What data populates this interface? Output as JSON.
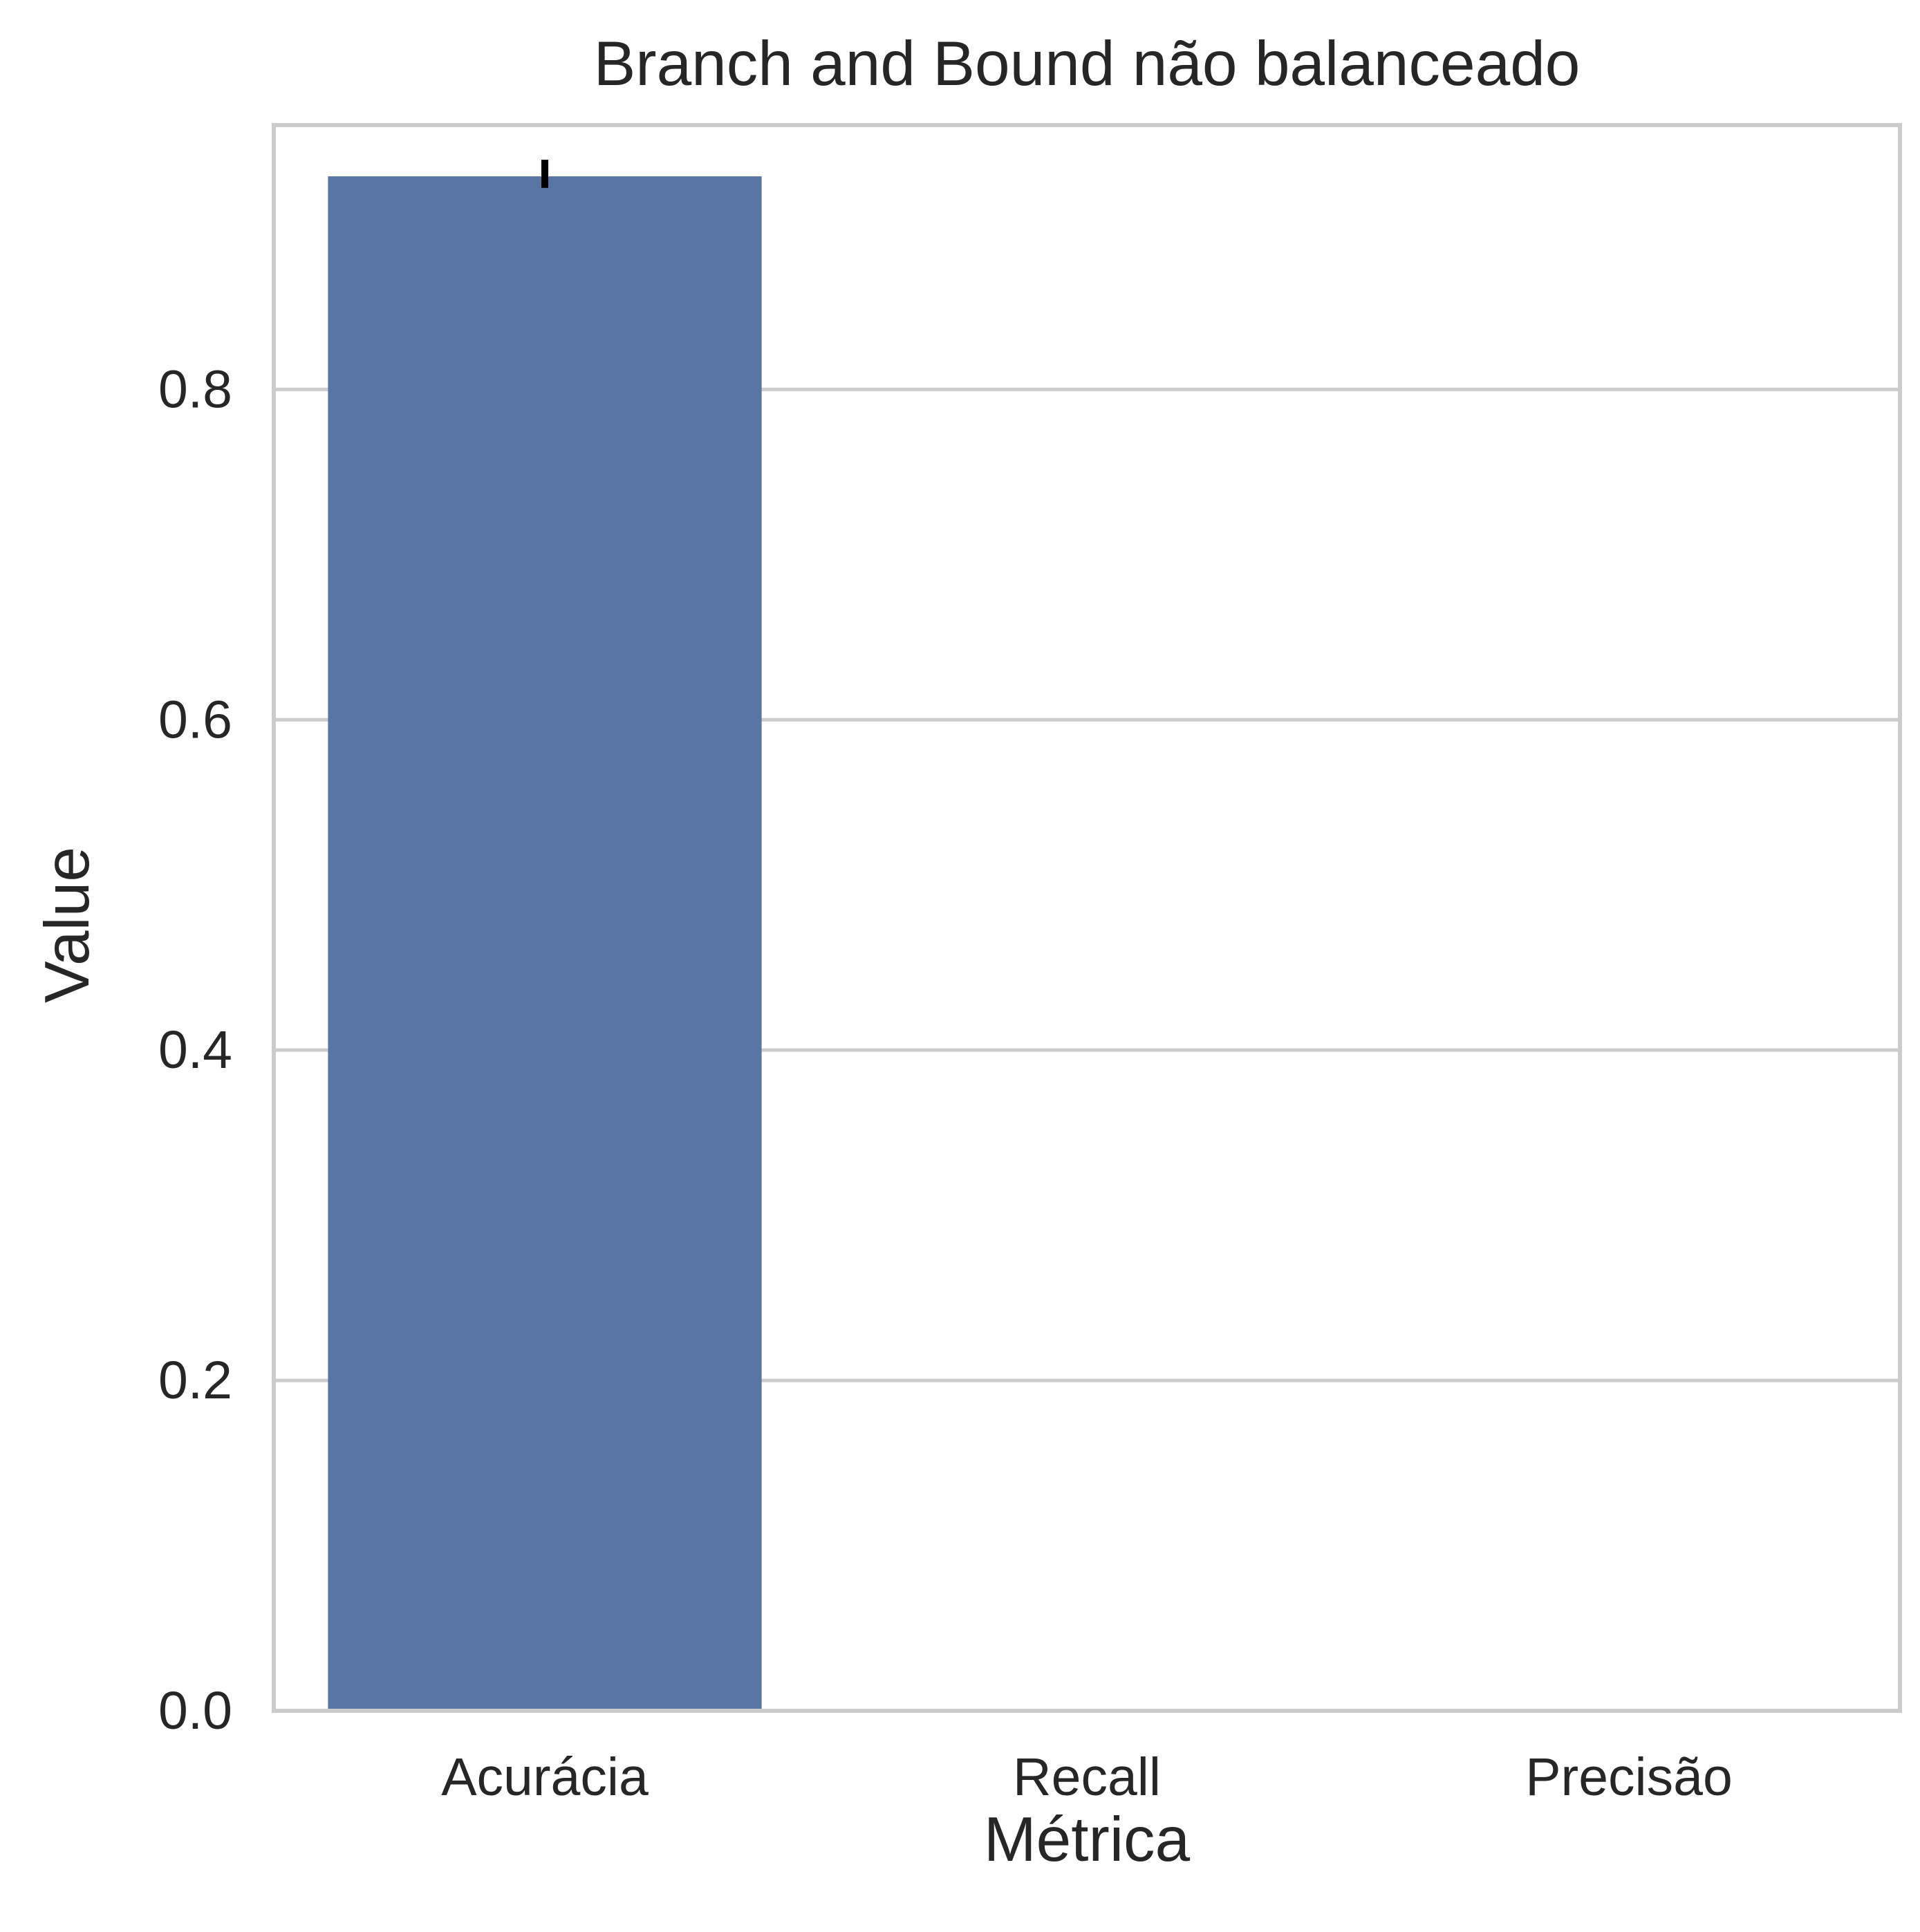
{
  "chart_data": {
    "type": "bar",
    "title": "Branch and Bound não balanceado",
    "xlabel": "Métrica",
    "ylabel": "Value",
    "categories": [
      "Acurácia",
      "Recall",
      "Precisão"
    ],
    "values": [
      0.929,
      0.0,
      0.0
    ],
    "error_bars": [
      {
        "category": "Acurácia",
        "low": 0.922,
        "high": 0.939
      }
    ],
    "ylim": [
      0,
      0.96
    ],
    "yticks": [
      0.0,
      0.2,
      0.4,
      0.6,
      0.8
    ],
    "ytick_labels": [
      "0.0",
      "0.2",
      "0.4",
      "0.6",
      "0.8"
    ],
    "grid": "horizontal",
    "colors": {
      "bar": "#5975a4",
      "grid": "#cccccc",
      "frame": "#cccccc",
      "text": "#262626",
      "error_bar": "#000000"
    }
  }
}
